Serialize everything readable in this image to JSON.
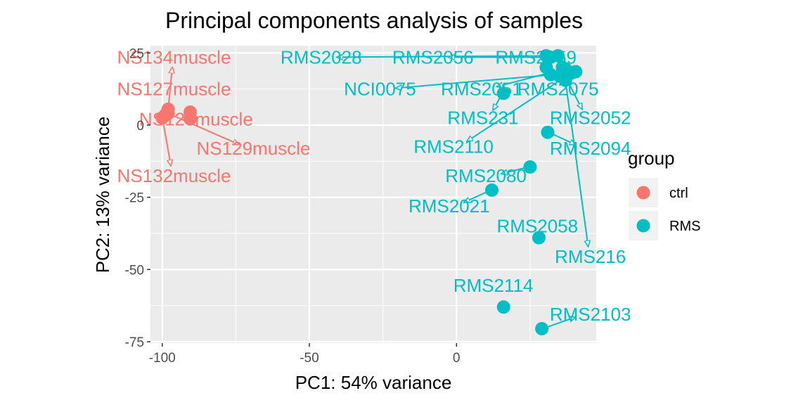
{
  "chart_data": {
    "type": "scatter",
    "title": "Principal components analysis of samples",
    "xlabel": "PC1: 54% variance",
    "ylabel": "PC2: 13% variance",
    "xlim": [
      -104,
      47.5
    ],
    "ylim": [
      -75.5,
      27.5
    ],
    "x_ticks": [
      -100,
      -50,
      0
    ],
    "y_ticks": [
      25,
      0,
      -25,
      -50,
      -75
    ],
    "grid": true,
    "legend": {
      "title": "group",
      "position": "right",
      "entries": [
        {
          "label": "ctrl",
          "color": "#F8766D"
        },
        {
          "label": "RMS",
          "color": "#00BFC4"
        }
      ]
    },
    "series": [
      {
        "name": "ctrl",
        "color": "#F8766D",
        "points": [
          {
            "label": "NS134muscle",
            "x": -98,
            "y": 5.5,
            "label_x": -96,
            "label_y": 23.5
          },
          {
            "label": "NS127muscle",
            "x": -99,
            "y": 3.5,
            "label_x": -96,
            "label_y": 12.5
          },
          {
            "label": "NS128muscle",
            "x": -90.5,
            "y": 4.5,
            "label_x": -88.5,
            "label_y": 2
          },
          {
            "label": "NS129muscle",
            "x": -98,
            "y": 4,
            "label_x": -69,
            "label_y": -8
          },
          {
            "label": "NS132muscle",
            "x": -100,
            "y": 2.5,
            "label_x": -96,
            "label_y": -17.5
          },
          {
            "label": "",
            "x": -90.5,
            "y": 2.2
          }
        ]
      },
      {
        "name": "RMS",
        "color": "#00BFC4",
        "points": [
          {
            "label": "RMS2028",
            "x": 30.5,
            "y": 24,
            "label_x": -46,
            "label_y": 23.5
          },
          {
            "label": "RMS2056",
            "x": 32,
            "y": 23.5,
            "label_x": -8,
            "label_y": 23.5
          },
          {
            "label": "RMS2059",
            "x": 34.5,
            "y": 24,
            "label_x": 27,
            "label_y": 23.5
          },
          {
            "label": "NCI0075",
            "x": 39,
            "y": 18,
            "label_x": -26,
            "label_y": 12.5
          },
          {
            "label": "RMS2051",
            "x": 37,
            "y": 19.5,
            "label_x": 8.5,
            "label_y": 12.5
          },
          {
            "label": "RMS2075",
            "x": 32,
            "y": 17.5,
            "label_x": 34.5,
            "label_y": 12.5
          },
          {
            "label": "RMS231",
            "x": 16,
            "y": 11,
            "label_x": 9,
            "label_y": 2.5
          },
          {
            "label": "RMS2052",
            "x": 37,
            "y": 16.5,
            "label_x": 45.5,
            "label_y": 2.5
          },
          {
            "label": "RMS2110",
            "x": 37.5,
            "y": 17,
            "label_x": -1,
            "label_y": -7.5
          },
          {
            "label": "RMS2094",
            "x": 31,
            "y": -2.5,
            "label_x": 45.5,
            "label_y": -8
          },
          {
            "label": "RMS2080",
            "x": 25,
            "y": -14.5,
            "label_x": 10,
            "label_y": -17.5
          },
          {
            "label": "RMS2021",
            "x": 12,
            "y": -22.5,
            "label_x": -2.5,
            "label_y": -28
          },
          {
            "label": "RMS2058",
            "x": 28,
            "y": -39,
            "label_x": 27.5,
            "label_y": -35
          },
          {
            "label": "RMS216",
            "x": 37,
            "y": 15.5,
            "label_x": 45.5,
            "label_y": -45.5
          },
          {
            "label": "RMS2114",
            "x": 16,
            "y": -63,
            "label_x": 12.5,
            "label_y": -55.5
          },
          {
            "label": "RMS2103",
            "x": 29,
            "y": -70.5,
            "label_x": 45.5,
            "label_y": -65.5
          },
          {
            "label": "",
            "x": 36,
            "y": 20
          },
          {
            "label": "",
            "x": 40.5,
            "y": 18.5
          },
          {
            "label": "",
            "x": 35,
            "y": 17
          },
          {
            "label": "",
            "x": 30.5,
            "y": 20
          }
        ]
      }
    ]
  }
}
